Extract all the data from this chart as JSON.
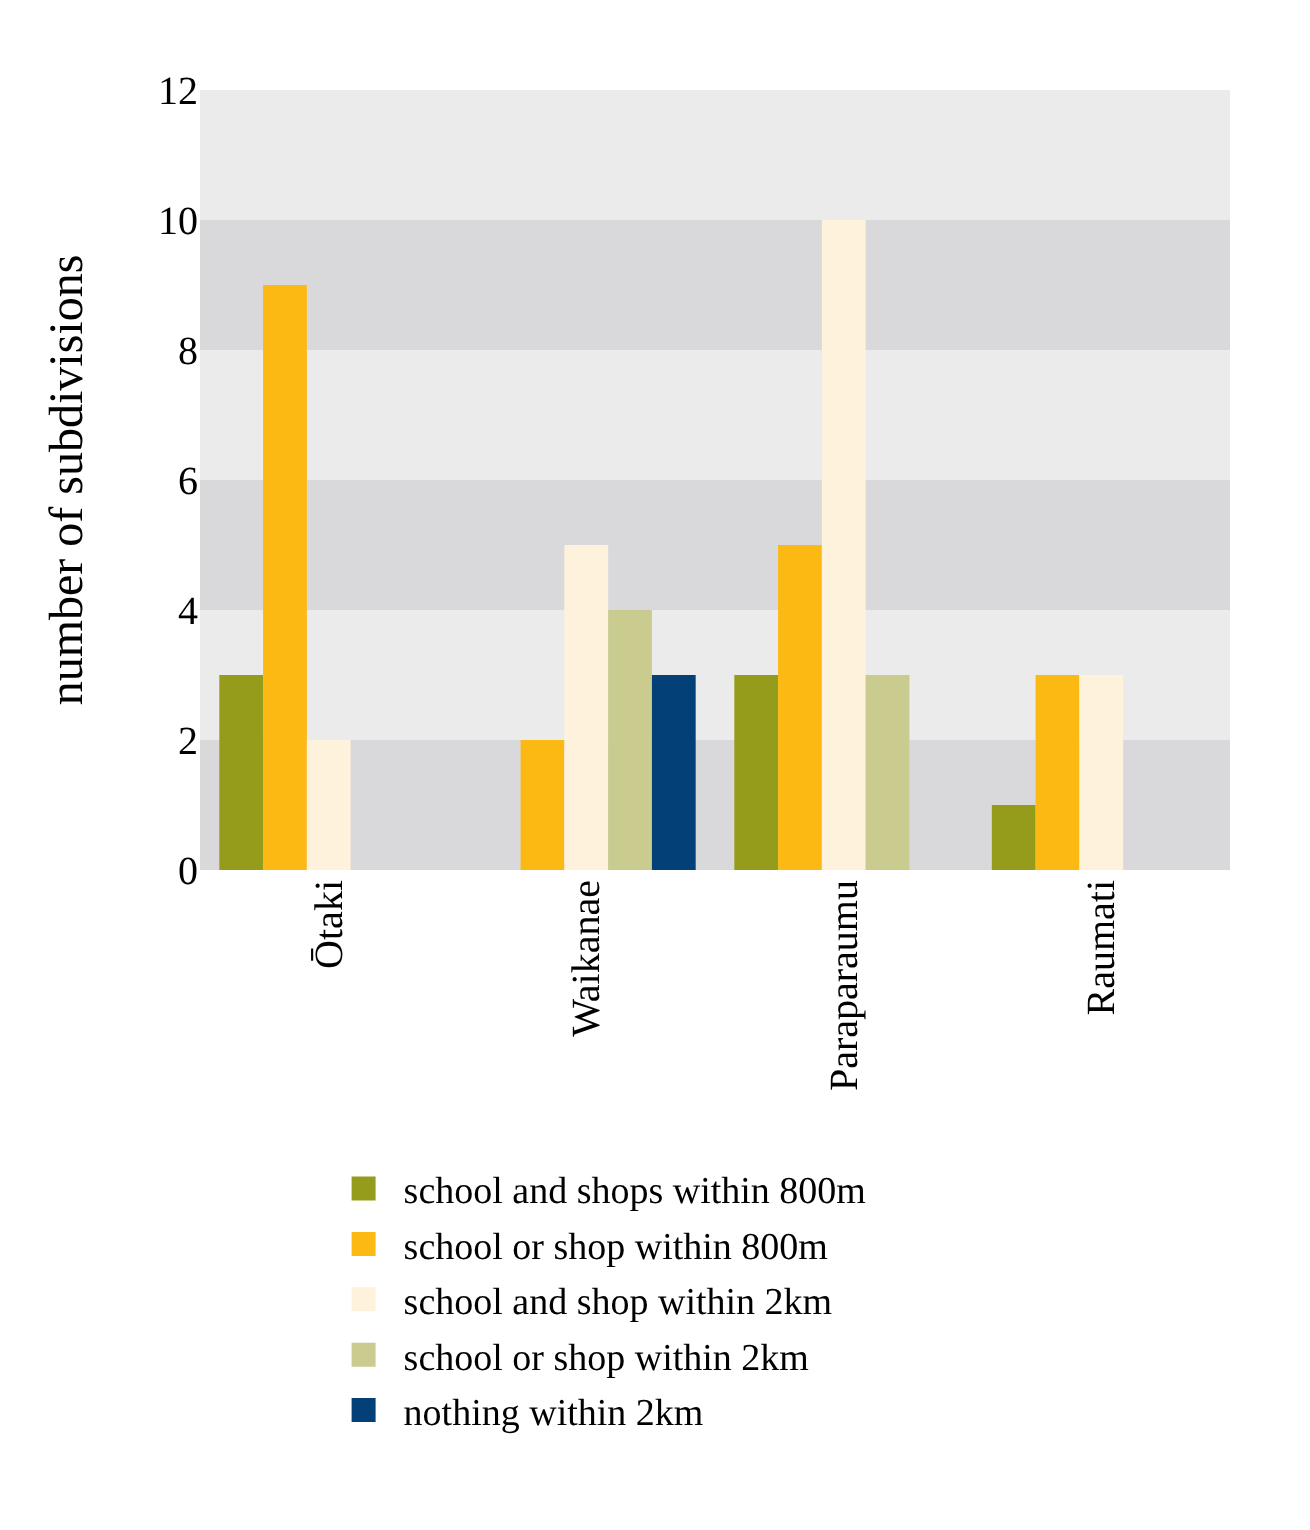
{
  "chart_data": {
    "type": "bar",
    "ylabel": "number of subdivisions",
    "categories": [
      "Ōtaki",
      "Waikanae",
      "Paraparaumu",
      "Raumati"
    ],
    "series": [
      {
        "name": "school and shops within 800m",
        "color": "#959c1b",
        "values": [
          3,
          0,
          3,
          1
        ]
      },
      {
        "name": "school or shop within 800m",
        "color": "#fdb913",
        "values": [
          9,
          2,
          5,
          3
        ]
      },
      {
        "name": "school and shop within 2km",
        "color": "#fff2dc",
        "values": [
          2,
          5,
          10,
          3
        ]
      },
      {
        "name": "school or shop within 2km",
        "color": "#c9cb8f",
        "values": [
          0,
          4,
          3,
          0
        ]
      },
      {
        "name": "nothing within 2km",
        "color": "#034078",
        "values": [
          0,
          3,
          0,
          0
        ]
      }
    ],
    "ylim": [
      0,
      12
    ],
    "yticks": [
      0,
      2,
      4,
      6,
      8,
      10,
      12
    ],
    "grid": false,
    "legend": "bottom",
    "bands": [
      {
        "axis": "y",
        "from": 0,
        "to": 2,
        "color": "#d9d9db"
      },
      {
        "axis": "y",
        "from": 2,
        "to": 4,
        "color": "#ebebeb"
      },
      {
        "axis": "y",
        "from": 4,
        "to": 6,
        "color": "#d9d9db"
      },
      {
        "axis": "y",
        "from": 6,
        "to": 8,
        "color": "#ebebeb"
      },
      {
        "axis": "y",
        "from": 8,
        "to": 10,
        "color": "#d9d9db"
      },
      {
        "axis": "y",
        "from": 10,
        "to": 12,
        "color": "#ebebeb"
      }
    ]
  }
}
